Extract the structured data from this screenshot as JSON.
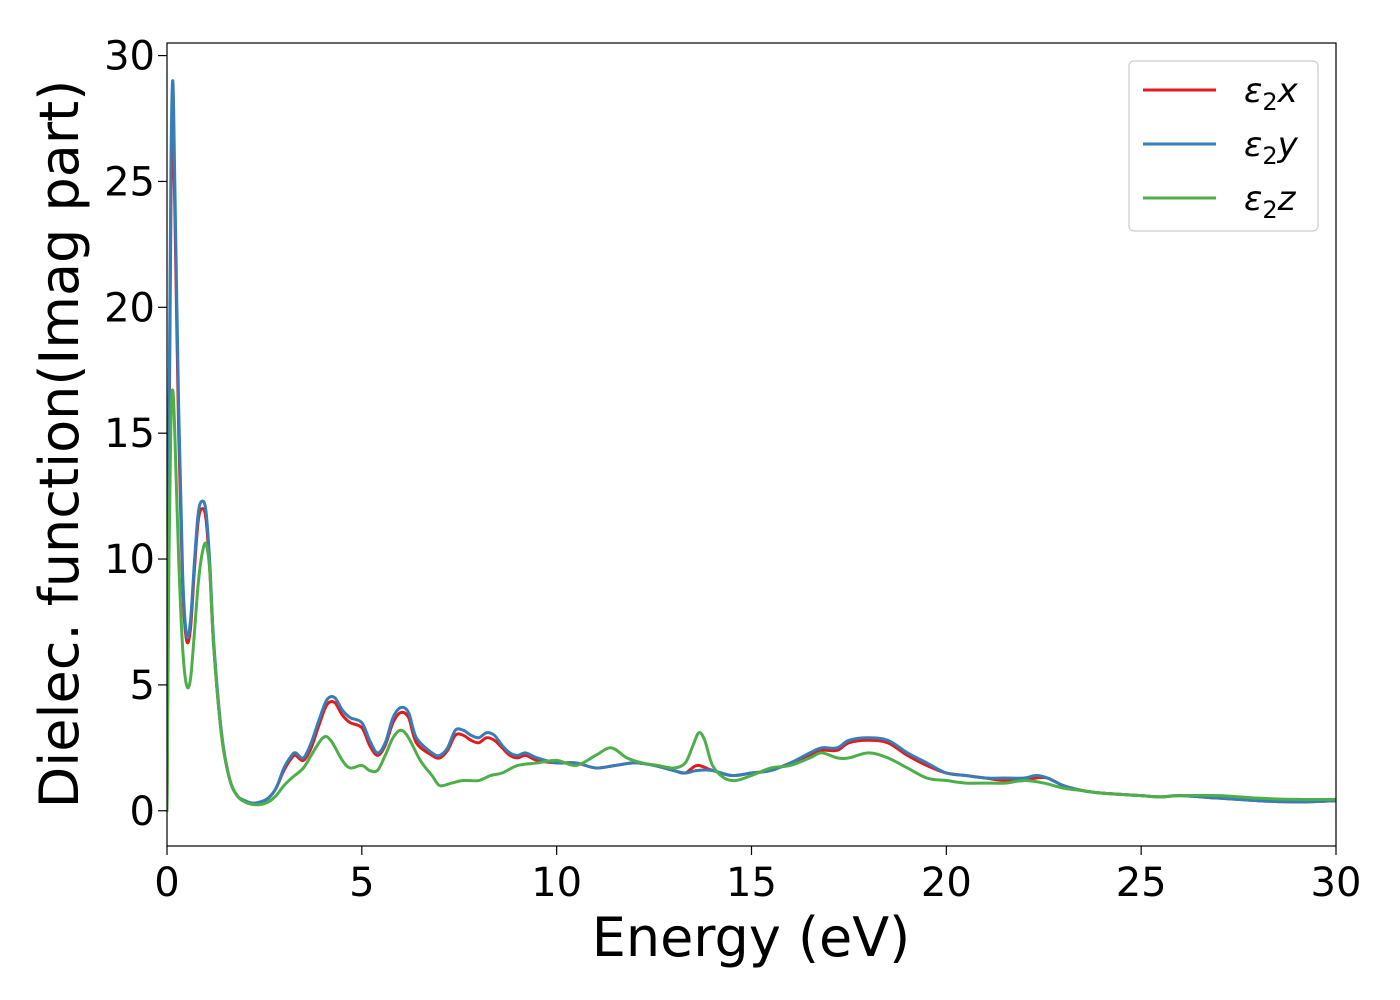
{
  "chart_data": {
    "type": "line",
    "title": "",
    "xlabel": "Energy (eV)",
    "ylabel": "Dielec. function(Imag part)",
    "xlim": [
      0,
      30
    ],
    "ylim": [
      -1.4,
      30.5
    ],
    "xticks": [
      0,
      5,
      10,
      15,
      20,
      25,
      30
    ],
    "yticks": [
      0,
      5,
      10,
      15,
      20,
      25,
      30
    ],
    "grid": false,
    "legend_position": "top-right",
    "series": [
      {
        "name": "ε₂x",
        "legend_main": "ε",
        "legend_sub": "2",
        "legend_suffix": "x",
        "color": "#e41a1c",
        "x": [
          0,
          0.05,
          0.1,
          0.15,
          0.2,
          0.3,
          0.4,
          0.5,
          0.6,
          0.7,
          0.8,
          0.9,
          1.0,
          1.1,
          1.2,
          1.4,
          1.6,
          1.8,
          2.0,
          2.2,
          2.4,
          2.6,
          2.8,
          3.0,
          3.2,
          3.3,
          3.5,
          3.7,
          3.9,
          4.1,
          4.3,
          4.5,
          4.7,
          5.0,
          5.2,
          5.4,
          5.6,
          5.8,
          6.0,
          6.2,
          6.4,
          6.8,
          7.0,
          7.2,
          7.4,
          7.6,
          7.8,
          8.0,
          8.2,
          8.4,
          8.6,
          8.8,
          9.0,
          9.2,
          9.5,
          10.0,
          10.5,
          11.0,
          11.5,
          12.0,
          12.5,
          13.0,
          13.3,
          13.6,
          14.0,
          14.5,
          15.0,
          15.5,
          16.0,
          16.5,
          16.8,
          17.2,
          17.5,
          18.0,
          18.5,
          19.0,
          19.5,
          20.0,
          20.5,
          21.0,
          21.5,
          22.0,
          22.3,
          22.6,
          23.0,
          23.5,
          24.0,
          25.0,
          25.5,
          26.0,
          27.0,
          28.0,
          29.0,
          30.0
        ],
        "y": [
          0,
          14,
          24,
          27.5,
          24,
          15,
          9,
          6.8,
          7.2,
          9.5,
          11.5,
          12.0,
          11.6,
          9.5,
          6.5,
          3.0,
          1.3,
          0.6,
          0.4,
          0.3,
          0.35,
          0.5,
          0.9,
          1.6,
          2.1,
          2.2,
          2.0,
          2.5,
          3.4,
          4.2,
          4.3,
          3.8,
          3.5,
          3.3,
          2.6,
          2.2,
          2.6,
          3.5,
          3.9,
          3.7,
          2.7,
          2.2,
          2.1,
          2.4,
          3.0,
          3.0,
          2.8,
          2.7,
          2.9,
          2.8,
          2.5,
          2.2,
          2.1,
          2.2,
          2.0,
          1.9,
          1.9,
          1.7,
          1.8,
          1.9,
          1.8,
          1.6,
          1.5,
          1.8,
          1.6,
          1.4,
          1.5,
          1.6,
          1.9,
          2.2,
          2.4,
          2.4,
          2.7,
          2.8,
          2.7,
          2.2,
          1.8,
          1.5,
          1.4,
          1.3,
          1.2,
          1.2,
          1.3,
          1.3,
          1.0,
          0.8,
          0.7,
          0.6,
          0.55,
          0.6,
          0.5,
          0.4,
          0.35,
          0.4
        ]
      },
      {
        "name": "ε₂y",
        "legend_main": "ε",
        "legend_sub": "2",
        "legend_suffix": "y",
        "color": "#377eb8",
        "x": [
          0,
          0.05,
          0.1,
          0.15,
          0.2,
          0.3,
          0.4,
          0.5,
          0.6,
          0.7,
          0.8,
          0.9,
          1.0,
          1.1,
          1.2,
          1.4,
          1.6,
          1.8,
          2.0,
          2.2,
          2.4,
          2.6,
          2.8,
          3.0,
          3.2,
          3.3,
          3.5,
          3.7,
          3.9,
          4.1,
          4.3,
          4.5,
          4.7,
          5.0,
          5.2,
          5.4,
          5.6,
          5.8,
          6.0,
          6.2,
          6.4,
          6.8,
          7.0,
          7.2,
          7.4,
          7.6,
          7.8,
          8.0,
          8.2,
          8.4,
          8.6,
          8.8,
          9.0,
          9.2,
          9.5,
          10.0,
          10.5,
          11.0,
          11.5,
          12.0,
          12.5,
          13.0,
          13.3,
          13.6,
          14.0,
          14.5,
          15.0,
          15.5,
          16.0,
          16.5,
          16.8,
          17.2,
          17.5,
          18.0,
          18.5,
          19.0,
          19.5,
          20.0,
          20.5,
          21.0,
          21.5,
          22.0,
          22.3,
          22.6,
          23.0,
          23.5,
          24.0,
          25.0,
          25.5,
          26.0,
          27.0,
          28.0,
          29.0,
          30.0
        ],
        "y": [
          0,
          15,
          25.5,
          29.0,
          25,
          16,
          9.5,
          7.0,
          7.5,
          9.8,
          11.8,
          12.3,
          11.9,
          9.8,
          6.7,
          3.1,
          1.3,
          0.6,
          0.4,
          0.3,
          0.35,
          0.5,
          0.9,
          1.7,
          2.2,
          2.3,
          2.1,
          2.7,
          3.6,
          4.4,
          4.5,
          4.0,
          3.7,
          3.5,
          2.8,
          2.3,
          2.7,
          3.7,
          4.1,
          3.9,
          2.9,
          2.3,
          2.2,
          2.5,
          3.2,
          3.2,
          3.0,
          2.9,
          3.1,
          3.0,
          2.6,
          2.3,
          2.2,
          2.3,
          2.1,
          1.9,
          1.9,
          1.7,
          1.8,
          1.9,
          1.8,
          1.6,
          1.5,
          1.6,
          1.6,
          1.4,
          1.5,
          1.6,
          1.9,
          2.3,
          2.5,
          2.5,
          2.8,
          2.9,
          2.8,
          2.3,
          1.9,
          1.5,
          1.4,
          1.3,
          1.3,
          1.3,
          1.4,
          1.3,
          1.0,
          0.8,
          0.7,
          0.6,
          0.55,
          0.6,
          0.5,
          0.4,
          0.35,
          0.4
        ]
      },
      {
        "name": "ε₂z",
        "legend_main": "ε",
        "legend_sub": "2",
        "legend_suffix": "z",
        "color": "#4daf4a",
        "x": [
          0,
          0.05,
          0.1,
          0.15,
          0.2,
          0.3,
          0.4,
          0.5,
          0.6,
          0.7,
          0.8,
          0.9,
          1.0,
          1.1,
          1.2,
          1.4,
          1.6,
          1.8,
          2.0,
          2.2,
          2.4,
          2.6,
          2.8,
          3.0,
          3.2,
          3.5,
          3.7,
          4.0,
          4.2,
          4.5,
          4.7,
          5.0,
          5.2,
          5.4,
          5.6,
          5.8,
          6.0,
          6.2,
          6.5,
          6.8,
          7.0,
          7.3,
          7.6,
          8.0,
          8.3,
          8.6,
          9.0,
          9.5,
          10.0,
          10.5,
          11.0,
          11.4,
          11.8,
          12.2,
          12.6,
          13.0,
          13.3,
          13.5,
          13.65,
          13.8,
          14.0,
          14.3,
          14.6,
          15.0,
          15.5,
          16.0,
          16.5,
          16.8,
          17.2,
          17.5,
          18.0,
          18.5,
          19.0,
          19.5,
          20.0,
          20.5,
          21.0,
          21.5,
          22.0,
          22.5,
          23.0,
          23.5,
          24.0,
          25.0,
          25.5,
          26.0,
          27.0,
          28.0,
          29.0,
          30.0
        ],
        "y": [
          0,
          10,
          15.5,
          16.7,
          15,
          10,
          6.5,
          5.0,
          5.2,
          7.0,
          9.0,
          10.2,
          10.6,
          9.5,
          6.5,
          3.0,
          1.3,
          0.6,
          0.35,
          0.25,
          0.25,
          0.35,
          0.6,
          1.0,
          1.3,
          1.7,
          2.2,
          2.9,
          2.8,
          2.0,
          1.7,
          1.8,
          1.6,
          1.6,
          2.2,
          2.9,
          3.2,
          2.9,
          2.0,
          1.4,
          1.0,
          1.1,
          1.2,
          1.2,
          1.4,
          1.5,
          1.8,
          1.9,
          2.0,
          1.8,
          2.2,
          2.5,
          2.1,
          1.9,
          1.8,
          1.7,
          1.9,
          2.6,
          3.1,
          2.8,
          1.8,
          1.3,
          1.2,
          1.4,
          1.7,
          1.8,
          2.1,
          2.3,
          2.1,
          2.1,
          2.3,
          2.1,
          1.7,
          1.3,
          1.2,
          1.1,
          1.1,
          1.1,
          1.2,
          1.1,
          0.9,
          0.8,
          0.7,
          0.6,
          0.55,
          0.6,
          0.6,
          0.5,
          0.45,
          0.45
        ]
      }
    ]
  }
}
